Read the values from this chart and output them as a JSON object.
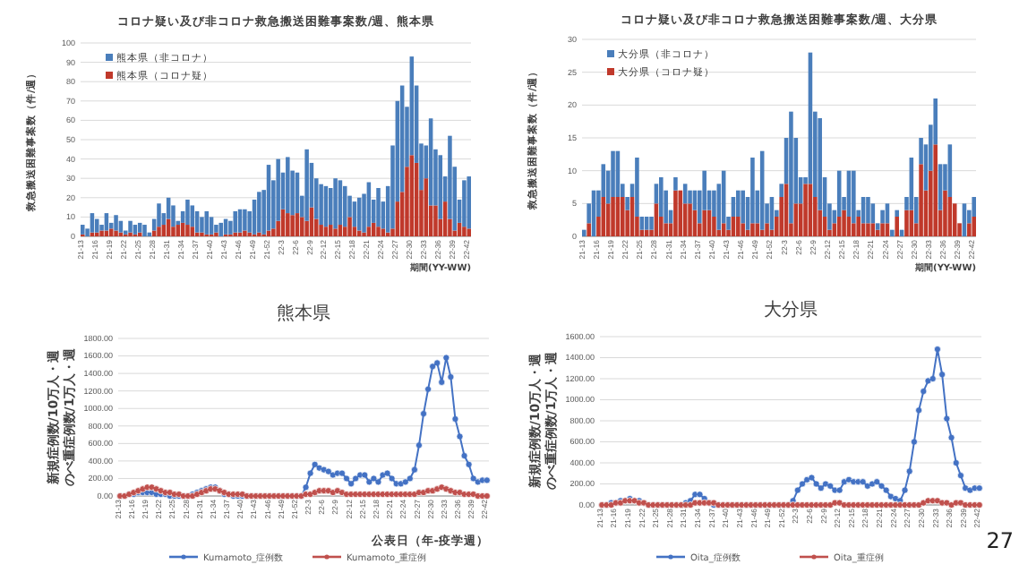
{
  "chart_data": [
    {
      "type": "bar",
      "stacked": true,
      "title": "コロナ疑い及び非コロナ救急搬送困難事案数/週、熊本県",
      "ylabel": "救急搬送困難事案数（件/週）",
      "xlabel": "期間(YY-WW)",
      "legend": "top left",
      "grid": "y",
      "ylim": [
        0,
        100
      ],
      "yticks": [
        0,
        10,
        20,
        30,
        40,
        50,
        60,
        70,
        80,
        90,
        100
      ],
      "categories": [
        "21-13",
        null,
        null,
        "21-16",
        null,
        null,
        "21-19",
        null,
        null,
        "21-22",
        null,
        null,
        "21-25",
        null,
        null,
        "21-28",
        null,
        null,
        "21-31",
        null,
        null,
        "21-34",
        null,
        null,
        "21-37",
        null,
        null,
        "21-40",
        null,
        null,
        "21-43",
        null,
        null,
        "21-46",
        null,
        null,
        "21-49",
        null,
        null,
        "21-52",
        null,
        null,
        "22-3",
        null,
        null,
        "22-6",
        null,
        null,
        "22-9",
        null,
        null,
        "22-12",
        null,
        null,
        "22-15",
        null,
        null,
        "22-18",
        null,
        null,
        "22-21",
        null,
        null,
        "22-24",
        null,
        null,
        "22-27",
        null,
        null,
        "22-30",
        null,
        null,
        "22-33",
        null,
        null,
        "22-36",
        null,
        null,
        "22-39",
        null,
        null,
        "22-42"
      ],
      "series": [
        {
          "name": "熊本県（コロナ疑）",
          "color": "#c0392b",
          "values": [
            1,
            0,
            2,
            2,
            3,
            3,
            4,
            3,
            2,
            1,
            2,
            1,
            2,
            0,
            0,
            3,
            5,
            6,
            9,
            5,
            6,
            7,
            6,
            5,
            2,
            2,
            1,
            1,
            2,
            0,
            1,
            1,
            2,
            2,
            3,
            2,
            1,
            2,
            1,
            3,
            4,
            8,
            14,
            12,
            11,
            12,
            10,
            8,
            15,
            9,
            6,
            5,
            6,
            4,
            6,
            5,
            10,
            5,
            3,
            2,
            5,
            7,
            5,
            4,
            2,
            4,
            18,
            23,
            36,
            42,
            38,
            24,
            30,
            16,
            16,
            9,
            18,
            9,
            3,
            7,
            5,
            4
          ]
        },
        {
          "name": "熊本県（非コロナ）",
          "color": "#4a7ebb",
          "values": [
            5,
            4,
            10,
            7,
            3,
            9,
            3,
            8,
            6,
            2,
            6,
            5,
            5,
            6,
            2,
            6,
            12,
            6,
            11,
            11,
            2,
            6,
            13,
            11,
            11,
            8,
            12,
            9,
            4,
            7,
            8,
            7,
            11,
            12,
            11,
            11,
            18,
            21,
            23,
            34,
            25,
            32,
            19,
            29,
            23,
            21,
            11,
            37,
            23,
            21,
            21,
            21,
            19,
            26,
            23,
            21,
            11,
            13,
            17,
            20,
            23,
            12,
            20,
            14,
            24,
            43,
            52,
            55,
            31,
            51,
            40,
            24,
            17,
            45,
            29,
            33,
            13,
            43,
            33,
            12,
            24,
            27
          ]
        }
      ]
    },
    {
      "type": "bar",
      "stacked": true,
      "title": "コロナ疑い及び非コロナ救急搬送困難事案数/週、大分県",
      "ylabel": "救急搬送困難事案数（件/週）",
      "xlabel": "期間(YY-WW)",
      "legend": "top left",
      "grid": "y",
      "ylim": [
        0,
        30
      ],
      "yticks": [
        0,
        5,
        10,
        15,
        20,
        25,
        30
      ],
      "categories": [
        "21-13",
        null,
        null,
        "21-16",
        null,
        null,
        "21-19",
        null,
        null,
        "21-22",
        null,
        null,
        "21-25",
        null,
        null,
        "21-28",
        null,
        null,
        "21-31",
        null,
        null,
        "21-34",
        null,
        null,
        "21-37",
        null,
        null,
        "21-40",
        null,
        null,
        "21-43",
        null,
        null,
        "21-46",
        null,
        null,
        "21-49",
        null,
        null,
        "21-52",
        null,
        null,
        "22-3",
        null,
        null,
        "22-6",
        null,
        null,
        "22-9",
        null,
        null,
        "22-12",
        null,
        null,
        "22-15",
        null,
        null,
        "22-18",
        null,
        null,
        "22-21",
        null,
        null,
        "22-24",
        null,
        null,
        "22-27",
        null,
        null,
        "22-30",
        null,
        null,
        "22-33",
        null,
        null,
        "22-36",
        null,
        null,
        "22-39",
        null,
        null,
        "22-42"
      ],
      "series": [
        {
          "name": "大分県（コロナ疑）",
          "color": "#c0392b",
          "values": [
            0,
            2,
            0,
            3,
            6,
            5,
            6,
            6,
            6,
            4,
            6,
            3,
            1,
            1,
            1,
            5,
            3,
            2,
            2,
            7,
            7,
            5,
            5,
            4,
            2,
            4,
            4,
            3,
            1,
            2,
            1,
            3,
            3,
            2,
            1,
            2,
            2,
            1,
            2,
            1,
            3,
            6,
            8,
            2,
            5,
            5,
            8,
            8,
            6,
            4,
            3,
            1,
            2,
            3,
            4,
            3,
            2,
            3,
            2,
            2,
            2,
            1,
            2,
            2,
            0,
            3,
            0,
            4,
            4,
            2,
            11,
            7,
            10,
            14,
            4,
            7,
            6,
            5,
            2,
            0,
            2,
            3
          ]
        },
        {
          "name": "大分県（非コロナ）",
          "color": "#4a7ebb",
          "values": [
            1,
            3,
            7,
            4,
            5,
            5,
            7,
            7,
            2,
            2,
            2,
            9,
            2,
            2,
            2,
            3,
            6,
            5,
            2,
            2,
            0,
            3,
            2,
            3,
            5,
            6,
            3,
            4,
            7,
            8,
            2,
            3,
            4,
            5,
            5,
            10,
            5,
            12,
            3,
            5,
            1,
            2,
            7,
            17,
            10,
            4,
            1,
            20,
            13,
            14,
            6,
            4,
            2,
            7,
            2,
            7,
            8,
            1,
            4,
            4,
            3,
            1,
            2,
            3,
            1,
            1,
            1,
            2,
            8,
            4,
            4,
            7,
            7,
            7,
            7,
            4,
            8,
            0,
            0,
            5,
            2,
            3
          ]
        }
      ]
    },
    {
      "type": "line",
      "title": "熊本県",
      "ylabel": "新規症例数/10万人・週のべ重症例数/1万人・週",
      "xlabel": "公表日（年-疫学週）",
      "legend": "bottom",
      "grid": "y",
      "marker": "circle",
      "ylim": [
        0,
        1800
      ],
      "yticks": [
        {
          "value": 0,
          "label": "0.00"
        },
        {
          "value": 200,
          "label": "200.00"
        },
        {
          "value": 400,
          "label": "400.00"
        },
        {
          "value": 600,
          "label": "600.00"
        },
        {
          "value": 800,
          "label": "800.00"
        },
        {
          "value": 1000,
          "label": "1000.00"
        },
        {
          "value": 1200,
          "label": "1200.00"
        },
        {
          "value": 1400,
          "label": "1400.00"
        },
        {
          "value": 1600,
          "label": "1600.00"
        },
        {
          "value": 1800,
          "label": "1800.00"
        }
      ],
      "categories": [
        "21-13",
        null,
        null,
        "21-16",
        null,
        null,
        "21-19",
        null,
        null,
        "21-22",
        null,
        null,
        "21-25",
        null,
        null,
        "21-28",
        null,
        null,
        "21-31",
        null,
        null,
        "21-34",
        null,
        null,
        "21-37",
        null,
        null,
        "21-40",
        null,
        null,
        "21-43",
        null,
        null,
        "21-46",
        null,
        null,
        "21-49",
        null,
        null,
        "21-52",
        null,
        null,
        "22-3",
        null,
        null,
        "22-6",
        null,
        null,
        "22-9",
        null,
        null,
        "22-12",
        null,
        null,
        "22-15",
        null,
        null,
        "22-18",
        null,
        null,
        "22-21",
        null,
        null,
        "22-24",
        null,
        null,
        "22-27",
        null,
        null,
        "22-30",
        null,
        null,
        "22-33",
        null,
        null,
        "22-36",
        null,
        null,
        "22-39",
        null,
        null,
        "22-42"
      ],
      "series": [
        {
          "name": "Kumamoto_症例数",
          "color": "#4472c4",
          "values": [
            0,
            0,
            20,
            20,
            40,
            40,
            40,
            40,
            20,
            20,
            20,
            0,
            0,
            0,
            0,
            0,
            20,
            40,
            60,
            80,
            100,
            100,
            60,
            20,
            20,
            0,
            0,
            0,
            0,
            0,
            0,
            0,
            0,
            0,
            0,
            0,
            0,
            0,
            0,
            0,
            0,
            100,
            260,
            360,
            320,
            300,
            280,
            240,
            260,
            260,
            200,
            140,
            200,
            240,
            240,
            160,
            200,
            160,
            240,
            260,
            200,
            140,
            140,
            160,
            200,
            300,
            580,
            940,
            1220,
            1480,
            1520,
            1300,
            1580,
            1360,
            880,
            680,
            460,
            360,
            200,
            160,
            180,
            180
          ]
        },
        {
          "name": "Kumamoto_重症例",
          "color": "#c0504d",
          "values": [
            0,
            0,
            20,
            40,
            60,
            80,
            100,
            100,
            80,
            60,
            40,
            40,
            20,
            20,
            0,
            0,
            0,
            20,
            40,
            60,
            80,
            80,
            60,
            40,
            20,
            20,
            20,
            20,
            0,
            0,
            0,
            0,
            0,
            0,
            0,
            0,
            0,
            0,
            0,
            0,
            0,
            20,
            20,
            40,
            60,
            60,
            60,
            40,
            60,
            40,
            20,
            20,
            20,
            20,
            20,
            20,
            20,
            20,
            20,
            20,
            20,
            20,
            20,
            20,
            20,
            20,
            40,
            40,
            60,
            60,
            80,
            100,
            80,
            60,
            40,
            40,
            20,
            20,
            20,
            0,
            0,
            0
          ]
        }
      ]
    },
    {
      "type": "line",
      "title": "大分県",
      "ylabel": "新規症例数/10万人・週のべ重症例数/1万人・週",
      "legend": "bottom",
      "grid": "y",
      "marker": "circle",
      "ylim": [
        0,
        1600
      ],
      "annotations": [
        "27"
      ],
      "yticks": [
        {
          "value": 0,
          "label": "0.00"
        },
        {
          "value": 200,
          "label": "200.00"
        },
        {
          "value": 400,
          "label": "400.00"
        },
        {
          "value": 600,
          "label": "600.00"
        },
        {
          "value": 800,
          "label": "800.00"
        },
        {
          "value": 1000,
          "label": "1000.00"
        },
        {
          "value": 1200,
          "label": "1200.00"
        },
        {
          "value": 1400,
          "label": "1400.00"
        },
        {
          "value": 1600,
          "label": "1600.00"
        }
      ],
      "categories": [
        "21-13",
        null,
        null,
        "21-16",
        null,
        null,
        "21-19",
        null,
        null,
        "21-22",
        null,
        null,
        "21-25",
        null,
        null,
        "21-28",
        null,
        null,
        "21-31",
        null,
        null,
        "21-34",
        null,
        null,
        "21-37",
        null,
        null,
        "21-40",
        null,
        null,
        "21-43",
        null,
        null,
        "21-46",
        null,
        null,
        "21-49",
        null,
        null,
        "21-52",
        null,
        null,
        "22-3",
        null,
        null,
        "22-6",
        null,
        null,
        "22-9",
        null,
        null,
        "22-12",
        null,
        null,
        "22-15",
        null,
        null,
        "22-18",
        null,
        null,
        "22-21",
        null,
        null,
        "22-24",
        null,
        null,
        "22-27",
        null,
        null,
        "22-30",
        null,
        null,
        "22-33",
        null,
        null,
        "22-36",
        null,
        null,
        "22-39",
        null,
        null,
        "22-42"
      ],
      "series": [
        {
          "name": "Oita_症例数",
          "color": "#4472c4",
          "values": [
            0,
            0,
            20,
            20,
            40,
            40,
            60,
            40,
            40,
            20,
            0,
            0,
            0,
            0,
            0,
            0,
            0,
            0,
            20,
            40,
            100,
            100,
            60,
            20,
            0,
            0,
            0,
            0,
            0,
            0,
            0,
            0,
            0,
            0,
            0,
            0,
            0,
            0,
            0,
            0,
            0,
            40,
            140,
            200,
            240,
            260,
            200,
            160,
            200,
            180,
            140,
            140,
            220,
            240,
            220,
            220,
            220,
            180,
            200,
            220,
            180,
            140,
            80,
            60,
            40,
            140,
            320,
            600,
            900,
            1080,
            1180,
            1200,
            1480,
            1240,
            820,
            640,
            400,
            280,
            160,
            140,
            160,
            160
          ]
        },
        {
          "name": "Oita_重症例",
          "color": "#c0504d",
          "values": [
            0,
            0,
            0,
            20,
            20,
            40,
            40,
            40,
            20,
            20,
            0,
            0,
            0,
            0,
            0,
            0,
            0,
            0,
            0,
            0,
            20,
            20,
            20,
            20,
            20,
            0,
            0,
            0,
            0,
            0,
            0,
            0,
            0,
            0,
            0,
            0,
            0,
            0,
            0,
            0,
            0,
            0,
            0,
            0,
            0,
            0,
            0,
            0,
            0,
            0,
            20,
            20,
            0,
            0,
            0,
            0,
            0,
            0,
            0,
            0,
            0,
            0,
            0,
            0,
            0,
            0,
            0,
            0,
            0,
            20,
            40,
            40,
            40,
            20,
            20,
            0,
            20,
            20,
            0,
            0,
            0,
            0
          ]
        }
      ]
    }
  ]
}
